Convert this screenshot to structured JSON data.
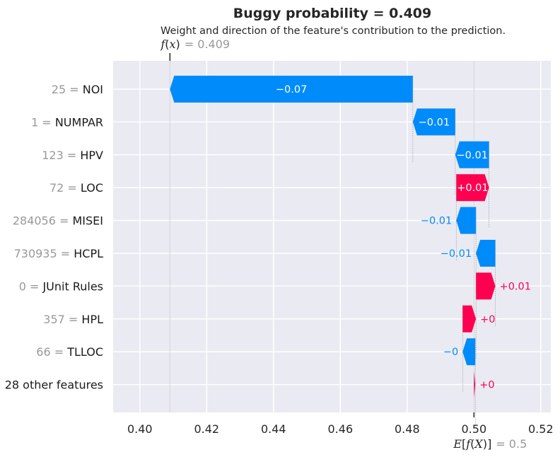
{
  "chart_data": {
    "type": "waterfall",
    "title": "Buggy probability = 0.409",
    "subtitle": "Weight and direction of the feature's contribution to the prediction.",
    "fx_label": {
      "f": "f",
      "open": "(",
      "x": "x",
      "close": ")",
      "value_text": "= 0.409"
    },
    "efx_label": {
      "e": "E",
      "open1": "[",
      "f": "f",
      "open2": "(",
      "x": "X",
      "close2": ")",
      "close1": "]",
      "value_text": "= 0.5"
    },
    "fx_value": 0.409,
    "efx_value": 0.5,
    "xlim": [
      0.392,
      0.523
    ],
    "xticks": [
      0.4,
      0.42,
      0.44,
      0.46,
      0.48,
      0.5,
      0.52
    ],
    "xtick_labels": [
      "0.40",
      "0.42",
      "0.44",
      "0.46",
      "0.48",
      "0.50",
      "0.52"
    ],
    "grid": true,
    "colors": {
      "positive": "#ff0051",
      "negative": "#008bfb",
      "background": "#eaeaf2",
      "grid": "#ffffff"
    },
    "features": [
      {
        "value": "25",
        "name": "NOI",
        "start": 0.4817,
        "end": 0.409,
        "label": "−0.07"
      },
      {
        "value": "1",
        "name": "NUMPAR",
        "start": 0.4944,
        "end": 0.4817,
        "label": "−0.01"
      },
      {
        "value": "123",
        "name": "HPV",
        "start": 0.5045,
        "end": 0.4944,
        "label": "−0.01"
      },
      {
        "value": "72",
        "name": "LOC",
        "start": 0.4947,
        "end": 0.5045,
        "label": "+0.01"
      },
      {
        "value": "284056",
        "name": "MISEI",
        "start": 0.5006,
        "end": 0.4947,
        "label": "−0.01"
      },
      {
        "value": "730935",
        "name": "HCPL",
        "start": 0.5064,
        "end": 0.5006,
        "label": "−0.01"
      },
      {
        "value": "0",
        "name": "JUnit Rules",
        "start": 0.5006,
        "end": 0.5064,
        "label": "+0.01"
      },
      {
        "value": "357",
        "name": "HPL",
        "start": 0.4966,
        "end": 0.5006,
        "label": "+0"
      },
      {
        "value": "66",
        "name": "TLLOC",
        "start": 0.5004,
        "end": 0.4966,
        "label": "−0"
      },
      {
        "value": "",
        "name": "28 other features",
        "start": 0.5,
        "end": 0.5004,
        "label": "+0"
      }
    ]
  }
}
